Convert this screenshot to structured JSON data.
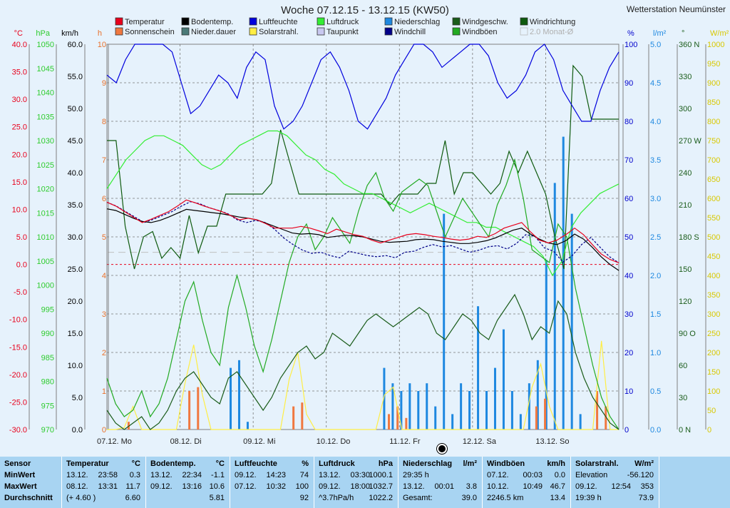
{
  "title": "Woche 07.12.15 - 13.12.15 (KW50)",
  "station": "Wetterstation Neumünster",
  "legend": [
    {
      "label": "Temperatur",
      "color": "#e8001c"
    },
    {
      "label": "Bodentemp.",
      "color": "#000000"
    },
    {
      "label": "Luftfeuchte",
      "color": "#0000dd"
    },
    {
      "label": "Luftdruck",
      "color": "#33ee33"
    },
    {
      "label": "Niederschlag",
      "color": "#1e88e0"
    },
    {
      "label": "Windgeschw.",
      "color": "#1a5c1a"
    },
    {
      "label": "Windrichtung",
      "color": "#0e5a0e"
    },
    {
      "label": "Sonnenschein",
      "color": "#f07840"
    },
    {
      "label": "Nieder.dauer",
      "color": "#4a7a78"
    },
    {
      "label": "Solarstrahl.",
      "color": "#ffee44"
    },
    {
      "label": "Taupunkt",
      "color": "#c8c8f0"
    },
    {
      "label": "Windchill",
      "color": "#000088"
    },
    {
      "label": "Windböen",
      "color": "#22aa22"
    },
    {
      "label": "2.0 Monat-Ø",
      "color": "#c8c8c8"
    }
  ],
  "axes_units": {
    "temp": "°C",
    "pressure": "hPa",
    "wind": "km/h",
    "sun": "h",
    "humidity": "%",
    "rain": "l/m²",
    "direction": "°",
    "solar": "W/m²"
  },
  "chart_data": {
    "type": "line",
    "title": "Woche 07.12.15 - 13.12.15 (KW50)",
    "x_labels": [
      "07.12. Mo",
      "08.12. Di",
      "09.12. Mi",
      "10.12. Do",
      "11.12. Fr",
      "12.12. Sa",
      "13.12. So"
    ],
    "axes": {
      "temp": {
        "label": "°C",
        "ticks": [
          "40.0",
          "35.0",
          "30.0",
          "25.0",
          "20.0",
          "15.0",
          "10.0",
          "5.0",
          "0.0",
          "-5.0",
          "-10.0",
          "-15.0",
          "-20.0",
          "-25.0",
          "-30.0"
        ],
        "range": [
          -30,
          40
        ]
      },
      "pressure": {
        "label": "hPa",
        "ticks": [
          "1050",
          "1045",
          "1040",
          "1035",
          "1030",
          "1025",
          "1020",
          "1015",
          "1010",
          "1005",
          "1000",
          "995",
          "990",
          "985",
          "980",
          "975",
          "970"
        ],
        "range": [
          970,
          1050
        ]
      },
      "wind": {
        "label": "km/h",
        "ticks": [
          "60.0",
          "55.0",
          "50.0",
          "45.0",
          "40.0",
          "35.0",
          "30.0",
          "25.0",
          "20.0",
          "15.0",
          "10.0",
          "5.0",
          "0.0"
        ],
        "range": [
          0,
          60
        ]
      },
      "sun": {
        "label": "h",
        "ticks": [
          "10",
          "9",
          "8",
          "7",
          "6",
          "5",
          "4",
          "3",
          "2",
          "1",
          "0"
        ],
        "range": [
          0,
          10
        ]
      },
      "humidity": {
        "label": "%",
        "ticks": [
          "100",
          "90",
          "80",
          "70",
          "60",
          "50",
          "40",
          "30",
          "20",
          "10",
          "0"
        ],
        "range": [
          0,
          100
        ]
      },
      "rain": {
        "label": "l/m²",
        "ticks": [
          "5.0",
          "4.5",
          "4.0",
          "3.5",
          "3.0",
          "2.5",
          "2.0",
          "1.5",
          "1.0",
          "0.5",
          "0.0"
        ],
        "range": [
          0,
          5
        ]
      },
      "direction": {
        "label": "°",
        "ticks": [
          "360 N",
          "330",
          "300",
          "270 W",
          "240",
          "210",
          "180 S",
          "150",
          "120",
          "90 O",
          "60",
          "30",
          "0 N"
        ],
        "range": [
          0,
          360
        ]
      },
      "solar": {
        "label": "W/m²",
        "ticks": [
          "1000",
          "950",
          "900",
          "850",
          "800",
          "750",
          "700",
          "650",
          "600",
          "550",
          "500",
          "450",
          "400",
          "350",
          "300",
          "250",
          "200",
          "150",
          "100",
          "50",
          "0"
        ],
        "range": [
          0,
          1000
        ]
      }
    },
    "series": [
      {
        "name": "Temperatur",
        "axis": "temp",
        "color": "#e8001c",
        "values": [
          11.3,
          10.6,
          9.6,
          8.6,
          7.6,
          8.2,
          8.9,
          9.6,
          10.6,
          11.7,
          11.2,
          10.6,
          10.1,
          9.6,
          8.9,
          8.1,
          8.4,
          8.1,
          7.4,
          6.6,
          6.6,
          6.6,
          6.9,
          6.6,
          6.1,
          5.6,
          6.4,
          5.9,
          5.4,
          5.1,
          4.4,
          3.9,
          4.4,
          4.9,
          5.4,
          5.6,
          5.4,
          5.1,
          4.9,
          4.6,
          4.4,
          4.6,
          5.1,
          4.9,
          5.6,
          6.6,
          7.1,
          7.6,
          5.9,
          4.4,
          3.9,
          4.4,
          5.4,
          6.6,
          5.4,
          3.6,
          1.9,
          0.9,
          0.3
        ]
      },
      {
        "name": "Bodentemp.",
        "axis": "temp",
        "color": "#000000",
        "values": [
          10.1,
          9.8,
          9.1,
          8.4,
          7.8,
          7.6,
          8.0,
          8.6,
          9.3,
          10.0,
          9.8,
          9.6,
          9.4,
          9.2,
          8.9,
          8.6,
          8.4,
          8.1,
          7.5,
          6.9,
          6.3,
          5.7,
          5.5,
          5.6,
          5.4,
          4.9,
          5.1,
          5.3,
          5.2,
          5.0,
          4.6,
          4.2,
          4.0,
          4.1,
          4.2,
          4.5,
          4.6,
          4.5,
          4.2,
          4.0,
          3.8,
          3.8,
          4.0,
          4.3,
          4.8,
          5.5,
          6.2,
          6.6,
          5.5,
          4.6,
          3.9,
          3.6,
          4.3,
          5.5,
          4.6,
          3.1,
          1.4,
          0.0,
          -1.1
        ]
      },
      {
        "name": "Luftfeuchte",
        "axis": "humidity",
        "color": "#0000dd",
        "values": [
          92,
          90,
          96,
          100,
          100,
          100,
          100,
          98,
          90,
          82,
          84,
          88,
          92,
          90,
          86,
          94,
          98,
          96,
          84,
          78,
          80,
          84,
          90,
          96,
          98,
          94,
          88,
          80,
          78,
          82,
          86,
          92,
          96,
          100,
          100,
          98,
          94,
          96,
          98,
          100,
          100,
          97,
          90,
          86,
          88,
          92,
          98,
          100,
          96,
          88,
          84,
          80,
          80,
          88,
          94,
          98
        ]
      },
      {
        "name": "Luftdruck",
        "axis": "pressure",
        "color": "#33ee33",
        "values": [
          1020,
          1023,
          1026,
          1028,
          1030,
          1031,
          1031,
          1030,
          1029,
          1027,
          1025,
          1024,
          1025,
          1027,
          1029,
          1030,
          1031,
          1032,
          1032,
          1031,
          1029,
          1027,
          1026,
          1024,
          1023,
          1021,
          1020,
          1019,
          1019,
          1018,
          1017,
          1016,
          1015,
          1016,
          1017,
          1016,
          1015,
          1014,
          1013,
          1013,
          1012,
          1012,
          1011,
          1010,
          1009,
          1008,
          1006,
          1002,
          1005,
          1012,
          1015,
          1017,
          1019,
          1020,
          1021
        ]
      },
      {
        "name": "Windgeschw.",
        "axis": "wind",
        "color": "#1a5c1a",
        "values": [
          3,
          1,
          0,
          1,
          2,
          0,
          1,
          3,
          6,
          8,
          9,
          7,
          5,
          4,
          8,
          9,
          7,
          5,
          3,
          5,
          8,
          10,
          12,
          13,
          11,
          12,
          15,
          14,
          13,
          15,
          17,
          18,
          17,
          16,
          17,
          18,
          19,
          18,
          15,
          14,
          16,
          18,
          17,
          15,
          14,
          17,
          19,
          21,
          18,
          14,
          16,
          15,
          20,
          18,
          12,
          8,
          5,
          3,
          1,
          0
        ]
      },
      {
        "name": "Windböen",
        "axis": "wind",
        "color": "#22aa22",
        "values": [
          8,
          4,
          2,
          3,
          6,
          2,
          4,
          8,
          14,
          20,
          23,
          17,
          12,
          10,
          19,
          24,
          19,
          13,
          9,
          14,
          20,
          26,
          30,
          32,
          28,
          30,
          33,
          31,
          29,
          34,
          38,
          40,
          36,
          34,
          37,
          38,
          39,
          38,
          34,
          30,
          33,
          36,
          34,
          32,
          30,
          35,
          38,
          42,
          36,
          28,
          27,
          26,
          32,
          30,
          22,
          16,
          10,
          5,
          2,
          0
        ]
      },
      {
        "name": "Windrichtung",
        "axis": "direction",
        "color": "#0e5a0e",
        "values": [
          270,
          270,
          190,
          150,
          180,
          185,
          160,
          170,
          160,
          200,
          165,
          190,
          190,
          220,
          220,
          220,
          220,
          220,
          230,
          280,
          250,
          220,
          220,
          220,
          220,
          220,
          220,
          220,
          220,
          220,
          220,
          210,
          220,
          220,
          220,
          230,
          230,
          270,
          220,
          240,
          240,
          230,
          220,
          230,
          260,
          240,
          260,
          240,
          220,
          180,
          150,
          340,
          330,
          290,
          290,
          290,
          290
        ]
      },
      {
        "name": "Windchill",
        "axis": "temp",
        "color": "#000088",
        "values": [
          11.3,
          10.6,
          9.6,
          8.6,
          7.6,
          8.2,
          8.9,
          9.6,
          10.6,
          11.4,
          11.0,
          10.3,
          9.8,
          9.2,
          8.1,
          7.6,
          8.0,
          7.6,
          6.4,
          4.8,
          3.6,
          2.6,
          2.0,
          2.2,
          1.6,
          1.2,
          2.4,
          2.0,
          1.6,
          1.4,
          1.6,
          1.2,
          2.2,
          2.4,
          3.1,
          3.6,
          3.2,
          3.4,
          2.8,
          2.2,
          2.6,
          3.2,
          3.4,
          2.8,
          3.8,
          5.4,
          5.1,
          3.0,
          2.4,
          0.4,
          1.6,
          3.6,
          4.9,
          3.1,
          1.4,
          0.3
        ]
      },
      {
        "name": "Niederschlag",
        "axis": "rain",
        "color": "#1e88e0",
        "type": "bar",
        "values": [
          0,
          0,
          0,
          0,
          0,
          0,
          0,
          0,
          0,
          0,
          0,
          0,
          0,
          0,
          0.8,
          0.9,
          0.1,
          0,
          0,
          0,
          0,
          0,
          0,
          0,
          0,
          0,
          0,
          0,
          0,
          0,
          0,
          0,
          0.8,
          0.6,
          0.5,
          0.6,
          0.5,
          0.6,
          0.3,
          2.8,
          0.2,
          0.6,
          0.5,
          1.6,
          0.5,
          0.8,
          1.3,
          0.5,
          0.2,
          0.6,
          0.9,
          2.2,
          3.2,
          3.8,
          2.8,
          0.2,
          0,
          0,
          0,
          0
        ]
      },
      {
        "name": "Sonnenschein",
        "axis": "sun",
        "color": "#f07840",
        "type": "bar",
        "values": [
          0,
          0,
          0.2,
          0,
          0,
          0,
          0,
          0,
          0,
          1.0,
          1.1,
          0,
          0,
          0,
          0,
          0,
          0,
          0,
          0,
          0,
          0,
          0.6,
          0.7,
          0,
          0,
          0,
          0,
          0,
          0,
          0,
          0,
          0,
          0.4,
          0.6,
          0.3,
          0,
          0,
          0,
          0,
          0,
          0,
          0,
          0,
          0,
          0,
          0,
          0,
          0,
          0,
          0.6,
          0.8,
          0,
          0,
          0,
          0,
          0,
          1.0,
          0.6,
          0
        ]
      },
      {
        "name": "Solarstrahl.",
        "axis": "solar",
        "color": "#ffee44",
        "values": [
          0,
          0,
          5,
          60,
          0,
          0,
          0,
          0,
          0,
          120,
          220,
          90,
          0,
          0,
          0,
          0,
          0,
          0,
          0,
          0,
          0,
          130,
          200,
          40,
          0,
          0,
          0,
          0,
          0,
          0,
          0,
          0,
          90,
          110,
          0,
          0,
          0,
          0,
          0,
          0,
          0,
          0,
          0,
          0,
          0,
          0,
          0,
          0,
          0,
          110,
          170,
          60,
          0,
          0,
          0,
          0,
          0,
          230,
          0,
          0
        ]
      }
    ]
  },
  "stats": {
    "row_labels": [
      "Sensor",
      "MinWert",
      "MaxWert",
      "Durchschnitt"
    ],
    "columns": [
      {
        "name": "Temperatur",
        "unit": "°C",
        "min": [
          "13.12.",
          "23:58",
          "0.3"
        ],
        "max": [
          "08.12.",
          "13:31",
          "11.7"
        ],
        "avg": [
          "(+ 4.60 )",
          "",
          "6.60"
        ]
      },
      {
        "name": "Bodentemp.",
        "unit": "°C",
        "min": [
          "13.12.",
          "22:34",
          "-1.1"
        ],
        "max": [
          "09.12.",
          "13:16",
          "10.6"
        ],
        "avg": [
          "",
          "",
          "5.81"
        ]
      },
      {
        "name": "Luftfeuchte",
        "unit": "%",
        "min": [
          "09.12.",
          "14:23",
          "74"
        ],
        "max": [
          "07.12.",
          "10:32",
          "100"
        ],
        "avg": [
          "",
          "",
          "92"
        ]
      },
      {
        "name": "Luftdruck",
        "unit": "hPa",
        "min": [
          "13.12.",
          "03:30",
          "1000.1"
        ],
        "max": [
          "09.12.",
          "18:00",
          "1032.7"
        ],
        "avg": [
          "^3.7hPa/h",
          "",
          "1022.2"
        ]
      },
      {
        "name": "Niederschlag",
        "unit": "l/m²",
        "min": [
          "29:35 h",
          "",
          ""
        ],
        "max": [
          "13.12.",
          "00:01",
          "3.8"
        ],
        "avg": [
          "Gesamt:",
          "",
          "39.0"
        ]
      },
      {
        "name": "Windböen",
        "unit": "km/h",
        "min": [
          "07.12.",
          "00:03",
          "0.0"
        ],
        "max": [
          "10.12.",
          "10:49",
          "46.7"
        ],
        "avg": [
          "2246.5 km",
          "",
          "13.4"
        ]
      },
      {
        "name": "Solarstrahl.",
        "unit": "W/m²",
        "min": [
          "Elevation",
          "",
          "-56.120"
        ],
        "max": [
          "09.12.",
          "12:54",
          "353"
        ],
        "avg": [
          "19:39 h",
          "",
          "73.9"
        ]
      }
    ]
  }
}
